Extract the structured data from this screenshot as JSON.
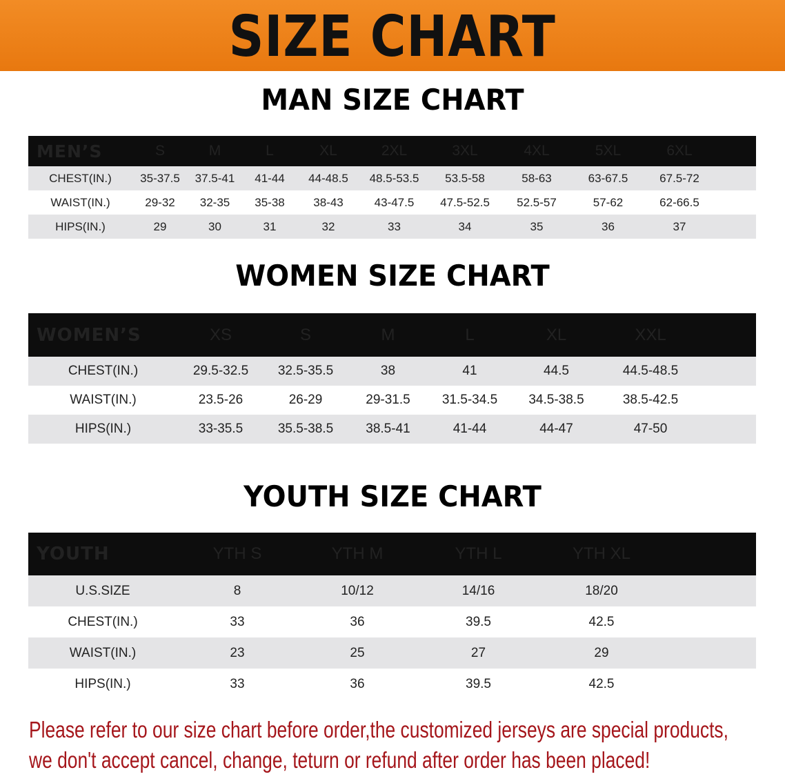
{
  "banner": {
    "title": "SIZE CHART",
    "color": "#f08a1e"
  },
  "men": {
    "title": "MAN SIZE CHART",
    "header": [
      "MEN’S",
      "S",
      "M",
      "L",
      "XL",
      "2XL",
      "3XL",
      "4XL",
      "5XL",
      "6XL"
    ],
    "rows": [
      [
        "CHEST(IN.)",
        "35-37.5",
        "37.5-41",
        "41-44",
        "44-48.5",
        "48.5-53.5",
        "53.5-58",
        "58-63",
        "63-67.5",
        "67.5-72"
      ],
      [
        "WAIST(IN.)",
        "29-32",
        "32-35",
        "35-38",
        "38-43",
        "43-47.5",
        "47.5-52.5",
        "52.5-57",
        "57-62",
        "62-66.5"
      ],
      [
        "HIPS(IN.)",
        "29",
        "30",
        "31",
        "32",
        "33",
        "34",
        "35",
        "36",
        "37"
      ]
    ]
  },
  "women": {
    "title": "WOMEN SIZE CHART",
    "header": [
      "WOMEN’S",
      "XS",
      "S",
      "M",
      "L",
      "XL",
      "XXL"
    ],
    "rows": [
      [
        "CHEST(IN.)",
        "29.5-32.5",
        "32.5-35.5",
        "38",
        "41",
        "44.5",
        "44.5-48.5"
      ],
      [
        "WAIST(IN.)",
        "23.5-26",
        "26-29",
        "29-31.5",
        "31.5-34.5",
        "34.5-38.5",
        "38.5-42.5"
      ],
      [
        "HIPS(IN.)",
        "33-35.5",
        "35.5-38.5",
        "38.5-41",
        "41-44",
        "44-47",
        "47-50"
      ]
    ]
  },
  "youth": {
    "title": "YOUTH SIZE CHART",
    "header": [
      "YOUTH",
      "YTH S",
      "YTH M",
      "YTH L",
      "YTH XL"
    ],
    "rows": [
      [
        "U.S.SIZE",
        "8",
        "10/12",
        "14/16",
        "18/20"
      ],
      [
        "CHEST(IN.)",
        "33",
        "36",
        "39.5",
        "42.5"
      ],
      [
        "WAIST(IN.)",
        "23",
        "25",
        "27",
        "29"
      ],
      [
        "HIPS(IN.)",
        "33",
        "36",
        "39.5",
        "42.5"
      ]
    ]
  },
  "notice": {
    "line1": "Please refer to our size chart before order,the customized jerseys are special products,",
    "line2": "we don't accept cancel, change, teturn or refund after order has been placed!",
    "color": "#a5161b"
  }
}
